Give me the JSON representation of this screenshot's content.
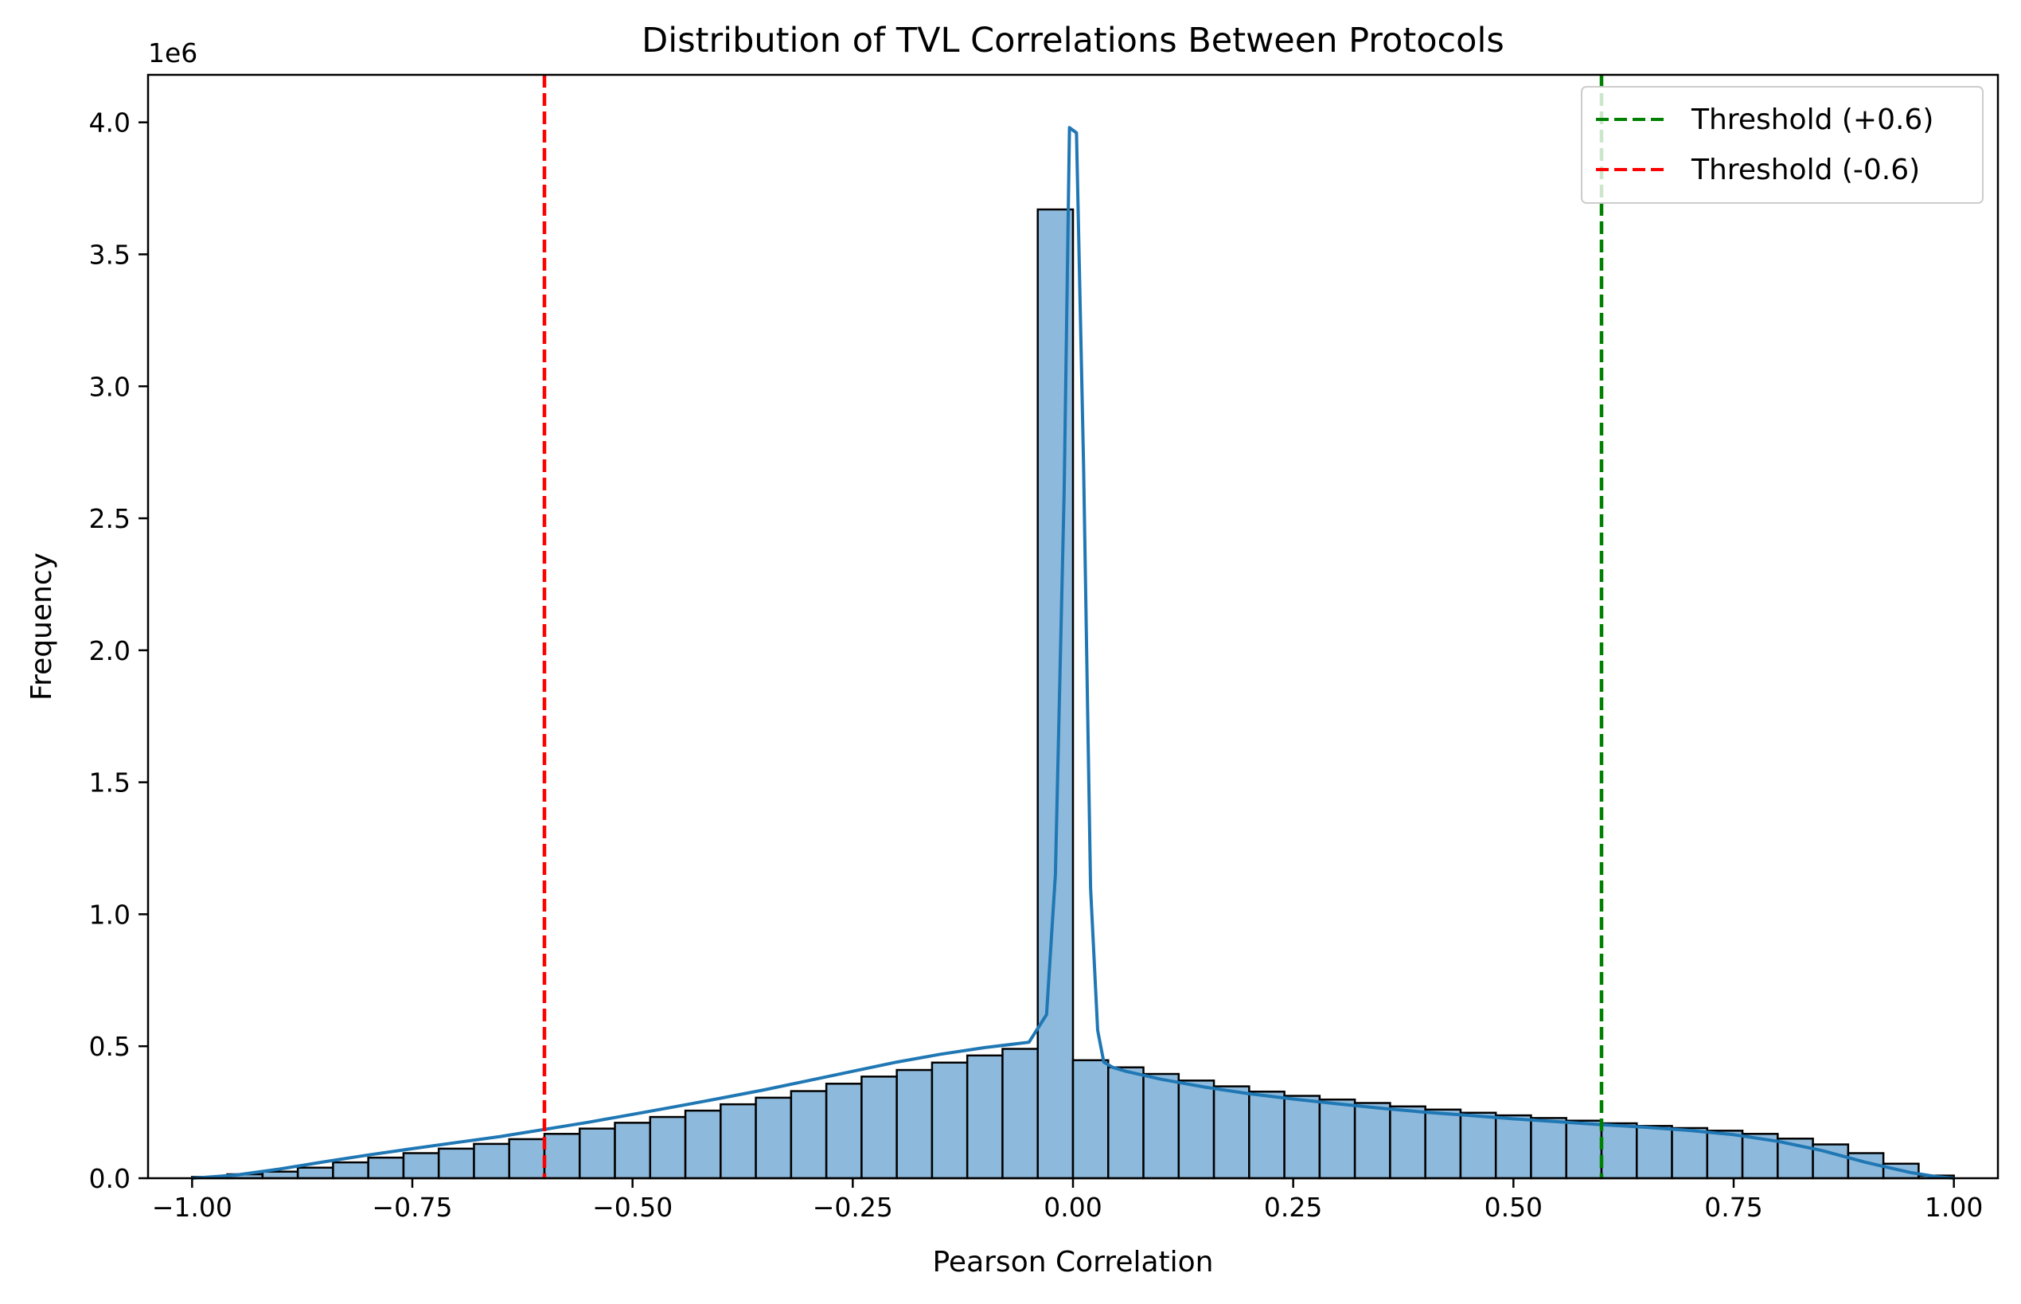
{
  "chart_data": {
    "type": "bar",
    "title": "Distribution of TVL Correlations Between Protocols",
    "xlabel": "Pearson Correlation",
    "ylabel": "Frequency",
    "y_offset_label": "1e6",
    "xlim": [
      -1.05,
      1.05
    ],
    "ylim": [
      0,
      4.18
    ],
    "y_unit_multiplier": 1000000,
    "xticks": [
      -1.0,
      -0.75,
      -0.5,
      -0.25,
      0.0,
      0.25,
      0.5,
      0.75,
      1.0
    ],
    "xtick_labels": [
      "−1.00",
      "−0.75",
      "−0.50",
      "−0.25",
      "0.00",
      "0.25",
      "0.50",
      "0.75",
      "1.00"
    ],
    "yticks": [
      0.0,
      0.5,
      1.0,
      1.5,
      2.0,
      2.5,
      3.0,
      3.5,
      4.0
    ],
    "ytick_labels": [
      "0.0",
      "0.5",
      "1.0",
      "1.5",
      "2.0",
      "2.5",
      "3.0",
      "3.5",
      "4.0"
    ],
    "histogram": {
      "bin_edges_start": -1.0,
      "bin_width": 0.04,
      "bin_count": 50,
      "counts_millions": [
        0.005,
        0.015,
        0.025,
        0.04,
        0.06,
        0.078,
        0.095,
        0.112,
        0.13,
        0.148,
        0.168,
        0.188,
        0.21,
        0.232,
        0.256,
        0.28,
        0.305,
        0.33,
        0.358,
        0.385,
        0.41,
        0.438,
        0.465,
        0.49,
        3.67,
        0.447,
        0.42,
        0.395,
        0.37,
        0.348,
        0.328,
        0.312,
        0.298,
        0.285,
        0.272,
        0.26,
        0.248,
        0.238,
        0.228,
        0.218,
        0.208,
        0.198,
        0.19,
        0.18,
        0.168,
        0.15,
        0.128,
        0.095,
        0.055,
        0.01
      ],
      "fill_color": "#8db9dc",
      "edge_color": "#000000"
    },
    "kde": {
      "name": "KDE",
      "color": "#1f77b4",
      "x": [
        -1.0,
        -0.95,
        -0.9,
        -0.85,
        -0.8,
        -0.75,
        -0.7,
        -0.65,
        -0.6,
        -0.55,
        -0.5,
        -0.45,
        -0.4,
        -0.35,
        -0.3,
        -0.25,
        -0.2,
        -0.15,
        -0.1,
        -0.05,
        -0.03,
        -0.02,
        -0.01,
        -0.004,
        0.0,
        0.004,
        0.012,
        0.02,
        0.028,
        0.035,
        0.045,
        0.06,
        0.1,
        0.15,
        0.2,
        0.25,
        0.3,
        0.35,
        0.4,
        0.45,
        0.5,
        0.55,
        0.6,
        0.65,
        0.7,
        0.75,
        0.8,
        0.85,
        0.9,
        0.95,
        0.98,
        1.0
      ],
      "y_millions": [
        0.0,
        0.012,
        0.035,
        0.062,
        0.088,
        0.112,
        0.135,
        0.158,
        0.185,
        0.212,
        0.242,
        0.272,
        0.303,
        0.335,
        0.37,
        0.405,
        0.44,
        0.47,
        0.495,
        0.515,
        0.62,
        1.15,
        2.6,
        3.98,
        3.97,
        3.96,
        2.7,
        1.1,
        0.56,
        0.44,
        0.42,
        0.405,
        0.375,
        0.345,
        0.32,
        0.3,
        0.282,
        0.265,
        0.25,
        0.238,
        0.225,
        0.214,
        0.203,
        0.193,
        0.181,
        0.165,
        0.14,
        0.105,
        0.06,
        0.022,
        0.006,
        0.0
      ]
    },
    "threshold_lines": [
      {
        "name": "Threshold (+0.6)",
        "x": 0.6,
        "color": "#008000"
      },
      {
        "name": "Threshold (-0.6)",
        "x": -0.6,
        "color": "#ff0000"
      }
    ],
    "legend_position": "top-right",
    "grid": false
  }
}
